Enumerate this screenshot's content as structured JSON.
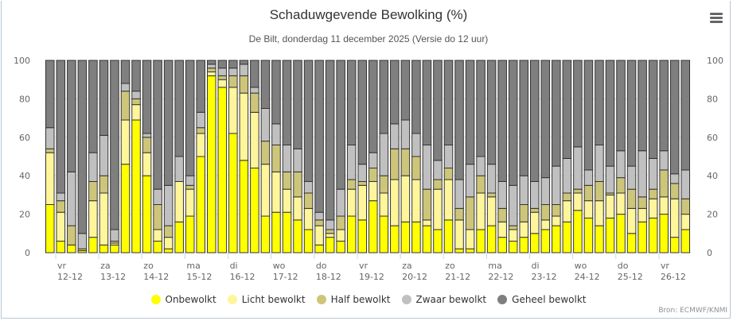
{
  "header": {
    "title": "Schaduwgevende Bewolking (%)",
    "subtitle": "De Bilt, donderdag 11 december 2025 (Versie do 12 uur)",
    "menu_icon": "hamburger-menu-icon"
  },
  "credit": "Bron: ECMWF/KNMI",
  "chart_data": {
    "type": "bar",
    "stacked": true,
    "title": "Schaduwgevende Bewolking (%)",
    "subtitle": "De Bilt, donderdag 11 december 2025 (Versie do 12 uur)",
    "xlabel": "",
    "ylabel": "",
    "ylim": [
      0,
      100
    ],
    "yticks": [
      "0",
      "20",
      "40",
      "60",
      "80",
      "100"
    ],
    "grid": true,
    "legend_position": "bottom",
    "x_day_labels": [
      {
        "day": "vr",
        "date": "12-12"
      },
      {
        "day": "za",
        "date": "13-12"
      },
      {
        "day": "zo",
        "date": "14-12"
      },
      {
        "day": "ma",
        "date": "15-12"
      },
      {
        "day": "di",
        "date": "16-12"
      },
      {
        "day": "wo",
        "date": "17-12"
      },
      {
        "day": "do",
        "date": "18-12"
      },
      {
        "day": "vr",
        "date": "19-12"
      },
      {
        "day": "za",
        "date": "20-12"
      },
      {
        "day": "zo",
        "date": "21-12"
      },
      {
        "day": "ma",
        "date": "22-12"
      },
      {
        "day": "di",
        "date": "23-12"
      },
      {
        "day": "wo",
        "date": "24-12"
      },
      {
        "day": "do",
        "date": "25-12"
      },
      {
        "day": "vr",
        "date": "26-12"
      }
    ],
    "series": [
      {
        "name": "Onbewolkt",
        "color": "#ffff00",
        "values": [
          25,
          6,
          4,
          1,
          8,
          4,
          4,
          46,
          69,
          40,
          6,
          2,
          16,
          19,
          50,
          92,
          86,
          62,
          48,
          44,
          19,
          21,
          21,
          17,
          12,
          4,
          8,
          6,
          19,
          17,
          27,
          19,
          14,
          16,
          16,
          14,
          12,
          17,
          2,
          2,
          12,
          14,
          8,
          6,
          8,
          10,
          12,
          14,
          16,
          22,
          18,
          14,
          18,
          20,
          10,
          16,
          18,
          20,
          8,
          12
        ]
      },
      {
        "name": "Licht bewolkt",
        "color": "#fff59a",
        "values": [
          27,
          15,
          0,
          0,
          19,
          27,
          1,
          23,
          8,
          12,
          6,
          6,
          21,
          14,
          12,
          2,
          4,
          24,
          35,
          29,
          27,
          21,
          12,
          12,
          11,
          10,
          2,
          6,
          14,
          18,
          10,
          12,
          24,
          24,
          22,
          3,
          21,
          21,
          15,
          10,
          19,
          15,
          8,
          6,
          8,
          11,
          5,
          5,
          11,
          9,
          9,
          13,
          12,
          11,
          13,
          7,
          10,
          9,
          20,
          8
        ]
      },
      {
        "name": "Half bewolkt",
        "color": "#cdc57a",
        "values": [
          2,
          6,
          10,
          1,
          10,
          9,
          1,
          15,
          3,
          8,
          13,
          6,
          0,
          2,
          3,
          2,
          2,
          6,
          9,
          10,
          12,
          14,
          9,
          13,
          8,
          3,
          2,
          7,
          5,
          2,
          7,
          9,
          16,
          14,
          12,
          16,
          5,
          6,
          6,
          17,
          9,
          2,
          7,
          2,
          9,
          2,
          8,
          6,
          4,
          2,
          8,
          10,
          1,
          8,
          10,
          6,
          5,
          14,
          8,
          8
        ]
      },
      {
        "name": "Zwaar bewolkt",
        "color": "#c0c0c0",
        "values": [
          11,
          4,
          28,
          8,
          15,
          21,
          6,
          4,
          4,
          2,
          8,
          21,
          13,
          5,
          8,
          2,
          4,
          4,
          6,
          3,
          17,
          11,
          14,
          12,
          6,
          4,
          5,
          14,
          18,
          9,
          8,
          22,
          13,
          15,
          12,
          23,
          10,
          12,
          15,
          17,
          10,
          15,
          14,
          21,
          15,
          14,
          14,
          20,
          18,
          22,
          8,
          19,
          14,
          14,
          12,
          24,
          16,
          10,
          5,
          15
        ]
      },
      {
        "name": "Geheel bewolkt",
        "color": "#7f7f7f",
        "values": [
          35,
          69,
          58,
          90,
          48,
          39,
          88,
          12,
          16,
          38,
          67,
          65,
          50,
          60,
          27,
          2,
          4,
          4,
          2,
          14,
          25,
          33,
          44,
          46,
          63,
          79,
          83,
          67,
          44,
          54,
          48,
          38,
          33,
          31,
          38,
          44,
          52,
          44,
          62,
          54,
          50,
          54,
          63,
          65,
          60,
          63,
          61,
          55,
          51,
          45,
          57,
          44,
          55,
          47,
          55,
          47,
          51,
          47,
          59,
          57
        ]
      }
    ]
  }
}
